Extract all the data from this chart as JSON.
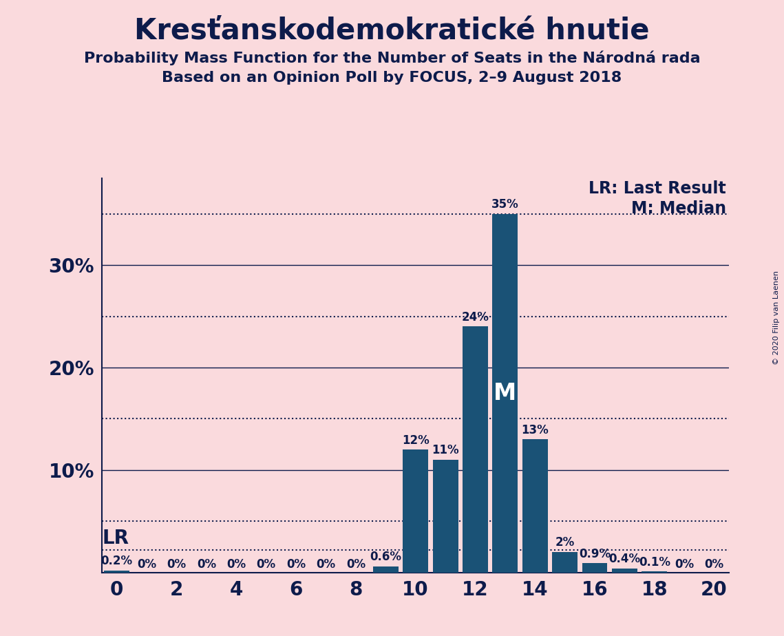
{
  "title": "Kresťanskodemokratické hnutie",
  "subtitle1": "Probability Mass Function for the Number of Seats in the Národná rada",
  "subtitle2": "Based on an Opinion Poll by FOCUS, 2–9 August 2018",
  "copyright": "© 2020 Filip van Laenen",
  "seats": [
    0,
    1,
    2,
    3,
    4,
    5,
    6,
    7,
    8,
    9,
    10,
    11,
    12,
    13,
    14,
    15,
    16,
    17,
    18,
    19,
    20
  ],
  "probabilities": [
    0.002,
    0.0,
    0.0,
    0.0,
    0.0,
    0.0,
    0.0,
    0.0,
    0.0,
    0.006,
    0.12,
    0.11,
    0.24,
    0.35,
    0.13,
    0.02,
    0.009,
    0.004,
    0.001,
    0.0,
    0.0
  ],
  "labels": [
    "0.2%",
    "0%",
    "0%",
    "0%",
    "0%",
    "0%",
    "0%",
    "0%",
    "0%",
    "0.6%",
    "12%",
    "11%",
    "24%",
    "35%",
    "13%",
    "2%",
    "0.9%",
    "0.4%",
    "0.1%",
    "0%",
    "0%"
  ],
  "bar_color": "#1a5276",
  "background_color": "#fadadd",
  "median_seats": 13,
  "ylim": [
    0,
    0.385
  ],
  "xlim": [
    -0.5,
    20.5
  ],
  "text_color": "#0d1b4b",
  "grid_solid_color": "#0d1b4b",
  "grid_dotted_color": "#0d1b4b",
  "lr_line_y": 0.022,
  "lr_label": "LR",
  "median_label": "M",
  "legend_lr": "LR: Last Result",
  "legend_m": "M: Median",
  "title_fontsize": 30,
  "subtitle_fontsize": 16,
  "axis_tick_fontsize": 20,
  "bar_label_fontsize": 12,
  "legend_fontsize": 17,
  "lr_fontsize": 20
}
